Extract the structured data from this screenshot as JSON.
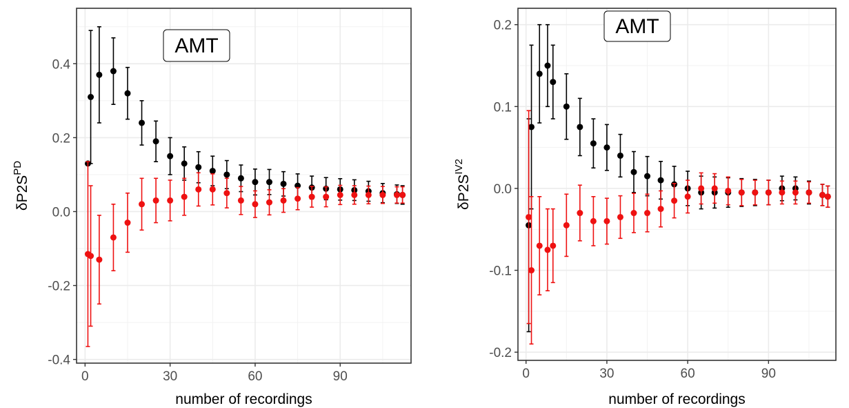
{
  "chart_data": [
    {
      "type": "scatter",
      "title": "",
      "xlabel": "number of recordings",
      "ylabel_main": "δP2S",
      "ylabel_sup": "PD",
      "annotation": "AMT",
      "xlim": [
        -3,
        115
      ],
      "ylim": [
        -0.41,
        0.55
      ],
      "xticks": [
        0,
        30,
        60,
        90
      ],
      "xtick_labels": [
        "0",
        "30",
        "60",
        "90"
      ],
      "yticks": [
        -0.4,
        -0.2,
        0.0,
        0.2,
        0.4
      ],
      "ytick_labels": [
        "-0.4",
        "-0.2",
        "0.0",
        "0.2",
        "0.4"
      ],
      "grid": true,
      "legend": "none",
      "series": [
        {
          "color": "#000000",
          "x": [
            1,
            2,
            5,
            10,
            15,
            20,
            25,
            30,
            35,
            40,
            45,
            50,
            55,
            60,
            65,
            70,
            75,
            80,
            85,
            90,
            95,
            100,
            105,
            110,
            112
          ],
          "y": [
            0.13,
            0.31,
            0.37,
            0.38,
            0.32,
            0.24,
            0.19,
            0.15,
            0.13,
            0.12,
            0.11,
            0.1,
            0.09,
            0.08,
            0.08,
            0.075,
            0.07,
            0.065,
            0.062,
            0.06,
            0.058,
            0.055,
            0.05,
            0.047,
            0.045
          ],
          "err": [
            0.0,
            0.18,
            0.13,
            0.09,
            0.07,
            0.06,
            0.055,
            0.05,
            0.045,
            0.042,
            0.04,
            0.038,
            0.036,
            0.035,
            0.034,
            0.033,
            0.032,
            0.031,
            0.03,
            0.029,
            0.028,
            0.027,
            0.026,
            0.025,
            0.025
          ]
        },
        {
          "color": "#ee1111",
          "x": [
            1,
            2,
            5,
            10,
            15,
            20,
            25,
            30,
            35,
            40,
            45,
            50,
            55,
            60,
            65,
            70,
            75,
            80,
            85,
            90,
            95,
            100,
            105,
            110,
            112
          ],
          "y": [
            -0.115,
            -0.12,
            -0.13,
            -0.07,
            -0.03,
            0.02,
            0.03,
            0.03,
            0.04,
            0.06,
            0.06,
            0.05,
            0.03,
            0.02,
            0.025,
            0.03,
            0.035,
            0.04,
            0.04,
            0.045,
            0.045,
            0.045,
            0.045,
            0.045,
            0.045
          ],
          "err": [
            0.25,
            0.19,
            0.12,
            0.09,
            0.08,
            0.07,
            0.06,
            0.055,
            0.05,
            0.045,
            0.042,
            0.04,
            0.038,
            0.036,
            0.034,
            0.032,
            0.03,
            0.028,
            0.027,
            0.026,
            0.025,
            0.024,
            0.023,
            0.022,
            0.022
          ]
        }
      ]
    },
    {
      "type": "scatter",
      "title": "",
      "xlabel": "number of recordings",
      "ylabel_main": "δP2S",
      "ylabel_sup": "IV2",
      "annotation": "AMT",
      "xlim": [
        -3,
        115
      ],
      "ylim": [
        -0.21,
        0.22
      ],
      "xticks": [
        0,
        30,
        60,
        90
      ],
      "xtick_labels": [
        "0",
        "30",
        "60",
        "90"
      ],
      "yticks": [
        -0.2,
        -0.1,
        0.0,
        0.1,
        0.2
      ],
      "ytick_labels": [
        "-0.2",
        "-0.1",
        "0.0",
        "0.1",
        "0.2"
      ],
      "grid": true,
      "legend": "none",
      "series": [
        {
          "color": "#000000",
          "x": [
            1,
            2,
            5,
            8,
            10,
            15,
            20,
            25,
            30,
            35,
            40,
            45,
            50,
            55,
            60,
            65,
            70,
            75,
            80,
            85,
            90,
            95,
            100,
            105,
            110,
            112
          ],
          "y": [
            -0.045,
            0.075,
            0.14,
            0.15,
            0.13,
            0.1,
            0.075,
            0.055,
            0.05,
            0.04,
            0.02,
            0.015,
            0.01,
            0.005,
            0.0,
            -0.005,
            -0.005,
            -0.005,
            -0.005,
            -0.005,
            -0.005,
            0.0,
            0.0,
            -0.005,
            -0.008,
            -0.01
          ],
          "err": [
            0.13,
            0.1,
            0.06,
            0.05,
            0.045,
            0.04,
            0.035,
            0.03,
            0.028,
            0.026,
            0.025,
            0.024,
            0.023,
            0.022,
            0.021,
            0.02,
            0.019,
            0.018,
            0.017,
            0.016,
            0.015,
            0.015,
            0.014,
            0.014,
            0.013,
            0.013
          ]
        },
        {
          "color": "#ee1111",
          "x": [
            1,
            2,
            5,
            8,
            10,
            15,
            20,
            25,
            30,
            35,
            40,
            45,
            50,
            55,
            60,
            65,
            70,
            75,
            80,
            85,
            90,
            95,
            100,
            105,
            110,
            112
          ],
          "y": [
            -0.035,
            -0.1,
            -0.07,
            -0.075,
            -0.07,
            -0.045,
            -0.03,
            -0.04,
            -0.04,
            -0.035,
            -0.03,
            -0.03,
            -0.025,
            -0.015,
            -0.01,
            0.0,
            0.0,
            -0.003,
            -0.005,
            -0.005,
            -0.005,
            -0.005,
            -0.005,
            -0.005,
            -0.008,
            -0.01
          ],
          "err": [
            0.13,
            0.09,
            0.06,
            0.05,
            0.045,
            0.038,
            0.034,
            0.03,
            0.028,
            0.026,
            0.024,
            0.023,
            0.022,
            0.021,
            0.02,
            0.019,
            0.018,
            0.017,
            0.016,
            0.015,
            0.015,
            0.014,
            0.014,
            0.013,
            0.013,
            0.013
          ]
        }
      ]
    }
  ]
}
